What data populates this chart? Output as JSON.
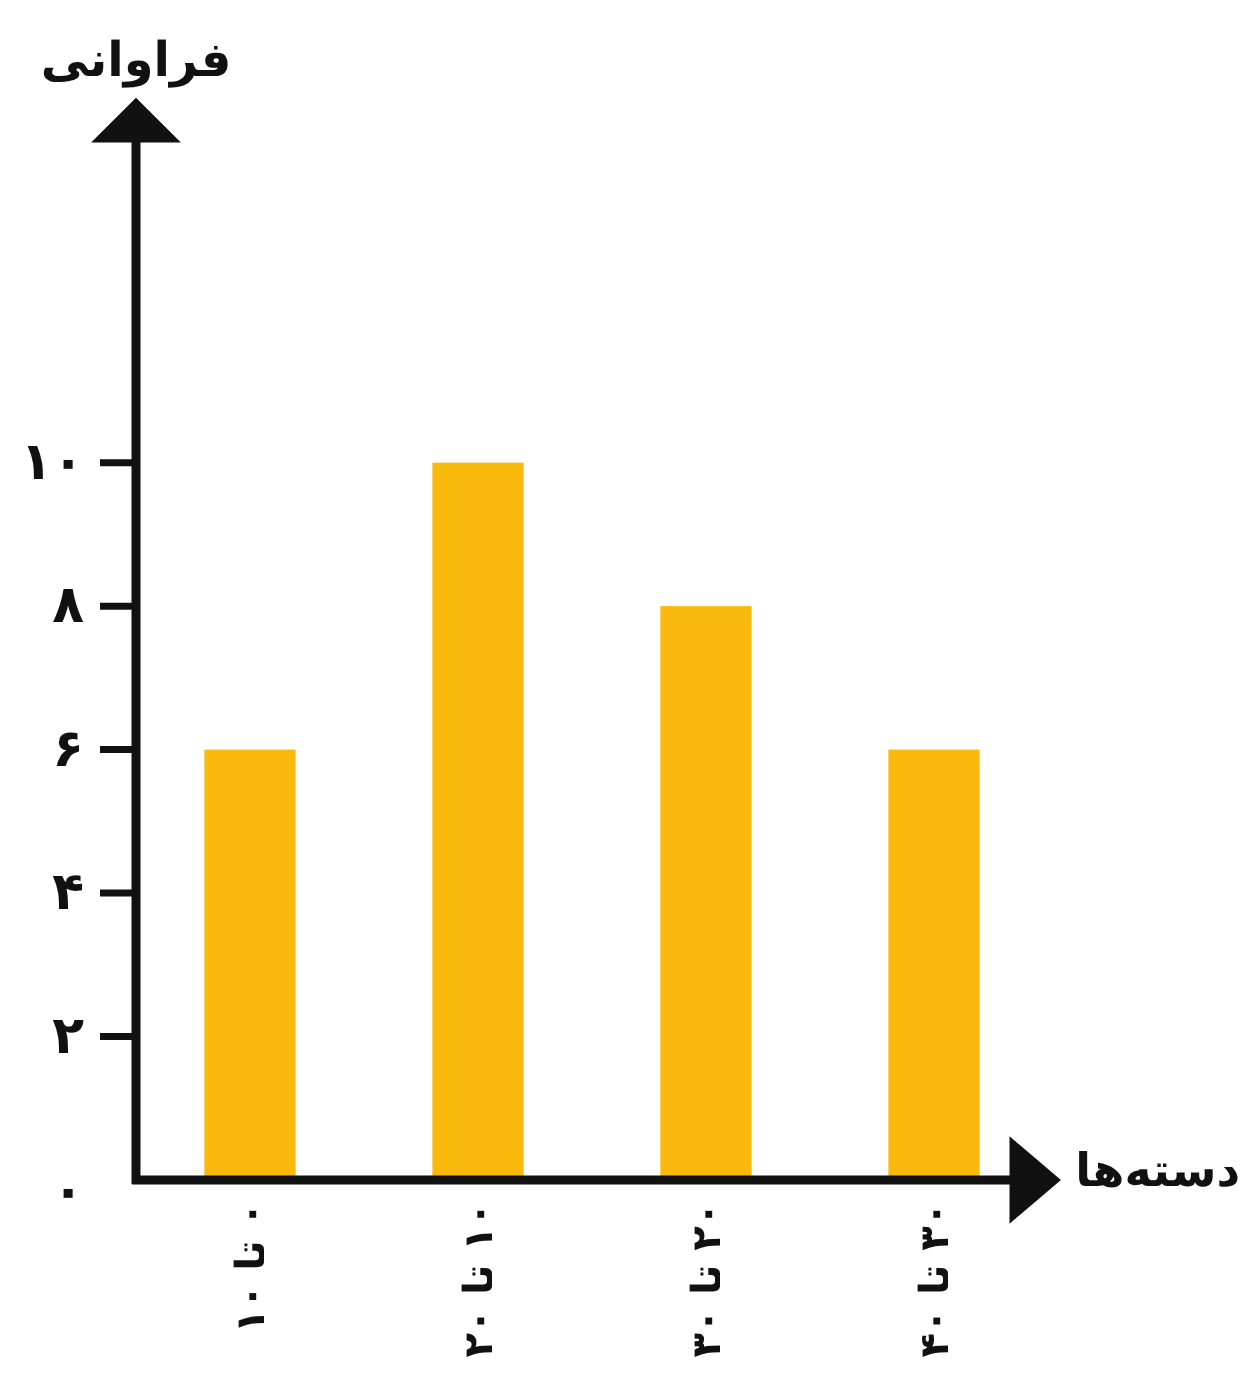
{
  "chart_data": {
    "type": "bar",
    "xlabel": "دسته‌ها",
    "ylabel": "فراوانی",
    "categories": [
      "۰ تا ۱۰",
      "۱۰ تا ۲۰",
      "۲۰ تا ۳۰",
      "۳۰ تا ۴۰"
    ],
    "values": [
      6,
      10,
      8,
      6
    ],
    "color": "#f8b90c",
    "ylim": [
      0,
      15
    ],
    "yticks": [
      {
        "value": 0,
        "label": "۰"
      },
      {
        "value": 2,
        "label": "۲"
      },
      {
        "value": 4,
        "label": "۴"
      },
      {
        "value": 6,
        "label": "۶"
      },
      {
        "value": 8,
        "label": "۸"
      },
      {
        "value": 10,
        "label": "۱۰"
      }
    ]
  }
}
